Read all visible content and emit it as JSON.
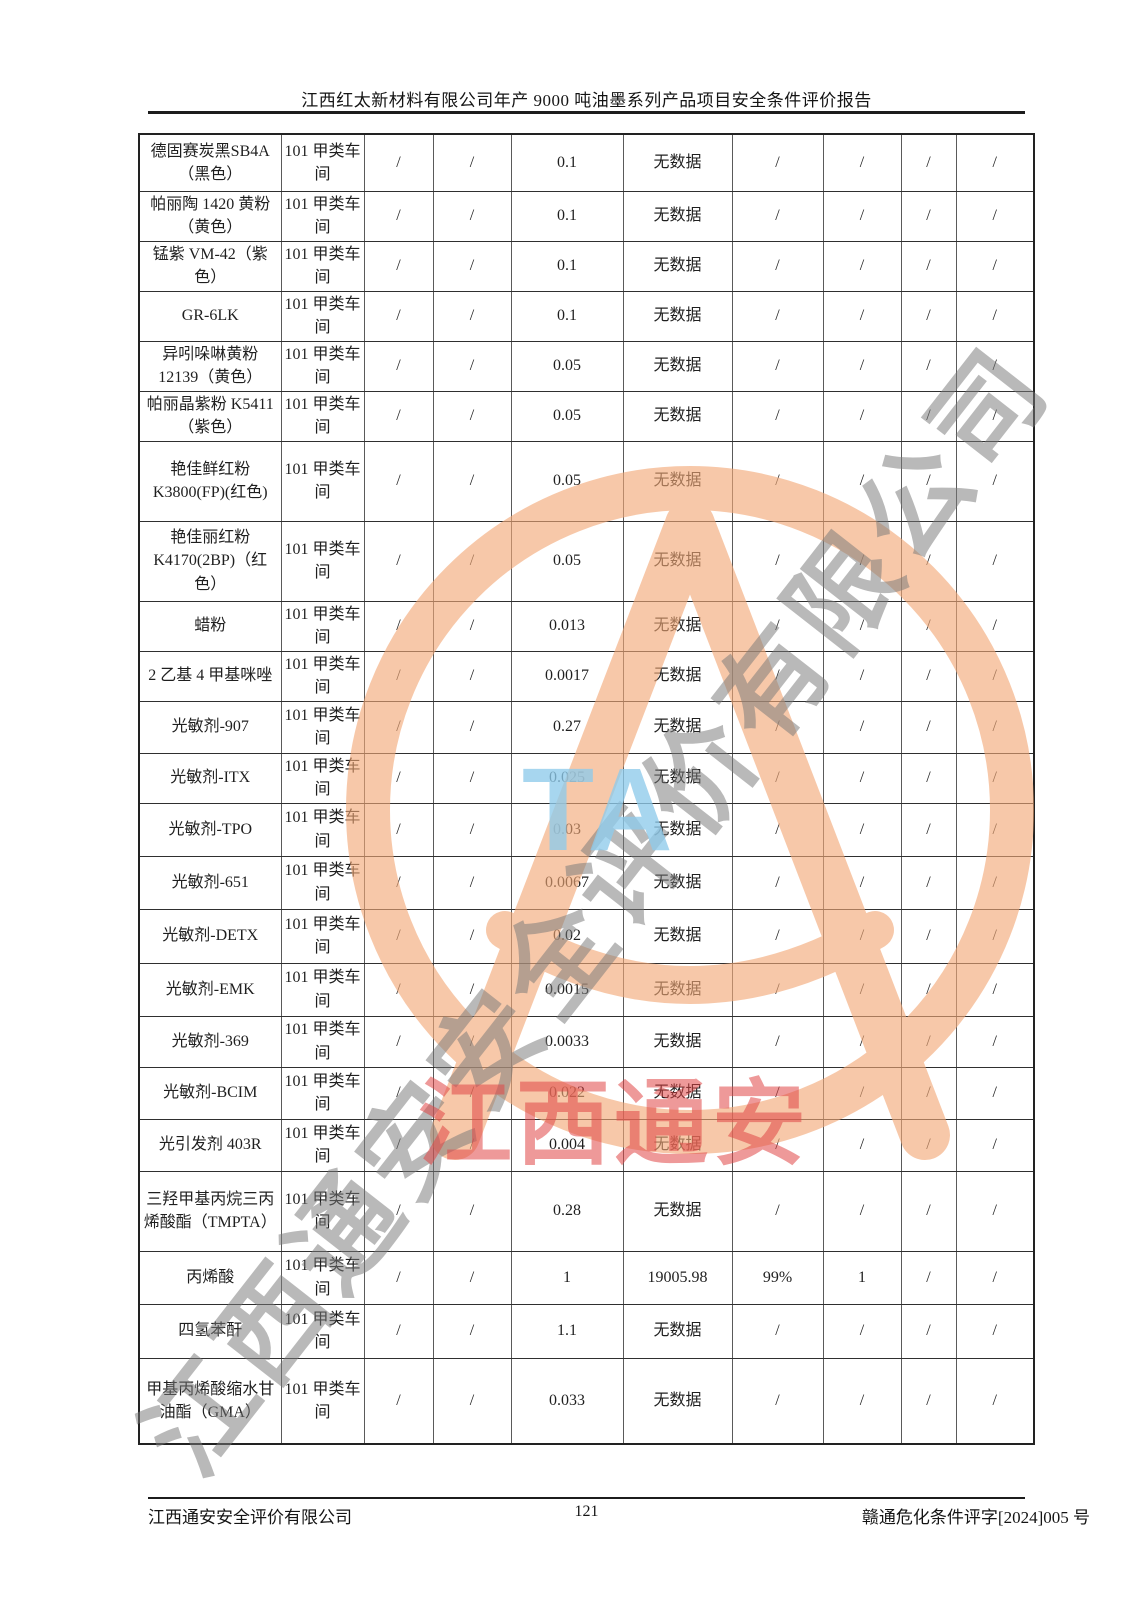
{
  "header": {
    "title": "江西红太新材料有限公司年产 9000 吨油墨系列产品项目安全条件评价报告"
  },
  "watermark": {
    "diagonal_text": "江西通安安全评价有限公司",
    "blue_letters": "TA",
    "red_stamp_text": "江西通安",
    "ring_color": "#f3a876",
    "gray_text_color": "#787878",
    "blue_text_color": "#8ecbeb",
    "red_text_color": "#e04646"
  },
  "table": {
    "rows": [
      {
        "cells": [
          "德固赛炭黑SB4A（黑色）",
          "101 甲类车间",
          "/",
          "/",
          "0.1",
          "无数据",
          "/",
          "/",
          "/",
          "/"
        ]
      },
      {
        "cells": [
          "帕丽陶 1420 黄粉（黄色）",
          "101 甲类车间",
          "/",
          "/",
          "0.1",
          "无数据",
          "/",
          "/",
          "/",
          "/"
        ]
      },
      {
        "cells": [
          "锰紫 VM-42（紫色）",
          "101 甲类车间",
          "/",
          "/",
          "0.1",
          "无数据",
          "/",
          "/",
          "/",
          "/"
        ]
      },
      {
        "cells": [
          "GR-6LK",
          "101 甲类车间",
          "/",
          "/",
          "0.1",
          "无数据",
          "/",
          "/",
          "/",
          "/"
        ]
      },
      {
        "cells": [
          "异吲哚啉黄粉 12139（黄色）",
          "101 甲类车间",
          "/",
          "/",
          "0.05",
          "无数据",
          "/",
          "/",
          "/",
          "/"
        ]
      },
      {
        "cells": [
          "帕丽晶紫粉 K5411（紫色）",
          "101 甲类车间",
          "/",
          "/",
          "0.05",
          "无数据",
          "/",
          "/",
          "/",
          "/"
        ]
      },
      {
        "cells": [
          "艳佳鲜红粉 K3800(FP)(红色)",
          "101 甲类车间",
          "/",
          "/",
          "0.05",
          "无数据",
          "/",
          "/",
          "/",
          "/"
        ]
      },
      {
        "cells": [
          "艳佳丽红粉 K4170(2BP)（红色）",
          "101 甲类车间",
          "/",
          "/",
          "0.05",
          "无数据",
          "/",
          "/",
          "/",
          "/"
        ]
      },
      {
        "cells": [
          "蜡粉",
          "101 甲类车间",
          "/",
          "/",
          "0.013",
          "无数据",
          "/",
          "/",
          "/",
          "/"
        ]
      },
      {
        "cells": [
          "2 乙基 4 甲基咪唑",
          "101 甲类车间",
          "/",
          "/",
          "0.0017",
          "无数据",
          "/",
          "/",
          "/",
          "/"
        ]
      },
      {
        "cells": [
          "光敏剂-907",
          "101 甲类车间",
          "/",
          "/",
          "0.27",
          "无数据",
          "/",
          "/",
          "/",
          "/"
        ]
      },
      {
        "cells": [
          "光敏剂-ITX",
          "101 甲类车间",
          "/",
          "/",
          "0.025",
          "无数据",
          "/",
          "/",
          "/",
          "/"
        ]
      },
      {
        "cells": [
          "光敏剂-TPO",
          "101 甲类车间",
          "/",
          "/",
          "0.03",
          "无数据",
          "/",
          "/",
          "/",
          "/"
        ]
      },
      {
        "cells": [
          "光敏剂-651",
          "101 甲类车间",
          "/",
          "/",
          "0.0067",
          "无数据",
          "/",
          "/",
          "/",
          "/"
        ]
      },
      {
        "cells": [
          "光敏剂-DETX",
          "101 甲类车间",
          "/",
          "/",
          "0.02",
          "无数据",
          "/",
          "/",
          "/",
          "/"
        ]
      },
      {
        "cells": [
          "光敏剂-EMK",
          "101 甲类车间",
          "/",
          "/",
          "0.0015",
          "无数据",
          "/",
          "/",
          "/",
          "/"
        ]
      },
      {
        "cells": [
          "光敏剂-369",
          "101 甲类车间",
          "/",
          "/",
          "0.0033",
          "无数据",
          "/",
          "/",
          "/",
          "/"
        ]
      },
      {
        "cells": [
          "光敏剂-BCIM",
          "101 甲类车间",
          "/",
          "/",
          "0.022",
          "无数据",
          "/",
          "/",
          "/",
          "/"
        ]
      },
      {
        "cells": [
          "光引发剂 403R",
          "101 甲类车间",
          "/",
          "/",
          "0.004",
          "无数据",
          "/",
          "/",
          "/",
          "/"
        ]
      },
      {
        "cells": [
          "三羟甲基丙烷三丙烯酸酯（TMPTA）",
          "101 甲类车间",
          "/",
          "/",
          "0.28",
          "无数据",
          "/",
          "/",
          "/",
          "/"
        ]
      },
      {
        "cells": [
          "丙烯酸",
          "101 甲类车间",
          "/",
          "/",
          "1",
          "19005.98",
          "99%",
          "1",
          "/",
          "/"
        ]
      },
      {
        "cells": [
          "四氢苯酐",
          "101 甲类车间",
          "/",
          "/",
          "1.1",
          "无数据",
          "/",
          "/",
          "/",
          "/"
        ]
      },
      {
        "cells": [
          "甲基丙烯酸缩水甘油酯（GMA）",
          "101 甲类车间",
          "/",
          "/",
          "0.033",
          "无数据",
          "/",
          "/",
          "/",
          "/"
        ]
      }
    ]
  },
  "footer": {
    "company": "江西通安安全评价有限公司",
    "page_number": "121",
    "document_number": "赣通危化条件评字[2024]005 号"
  }
}
